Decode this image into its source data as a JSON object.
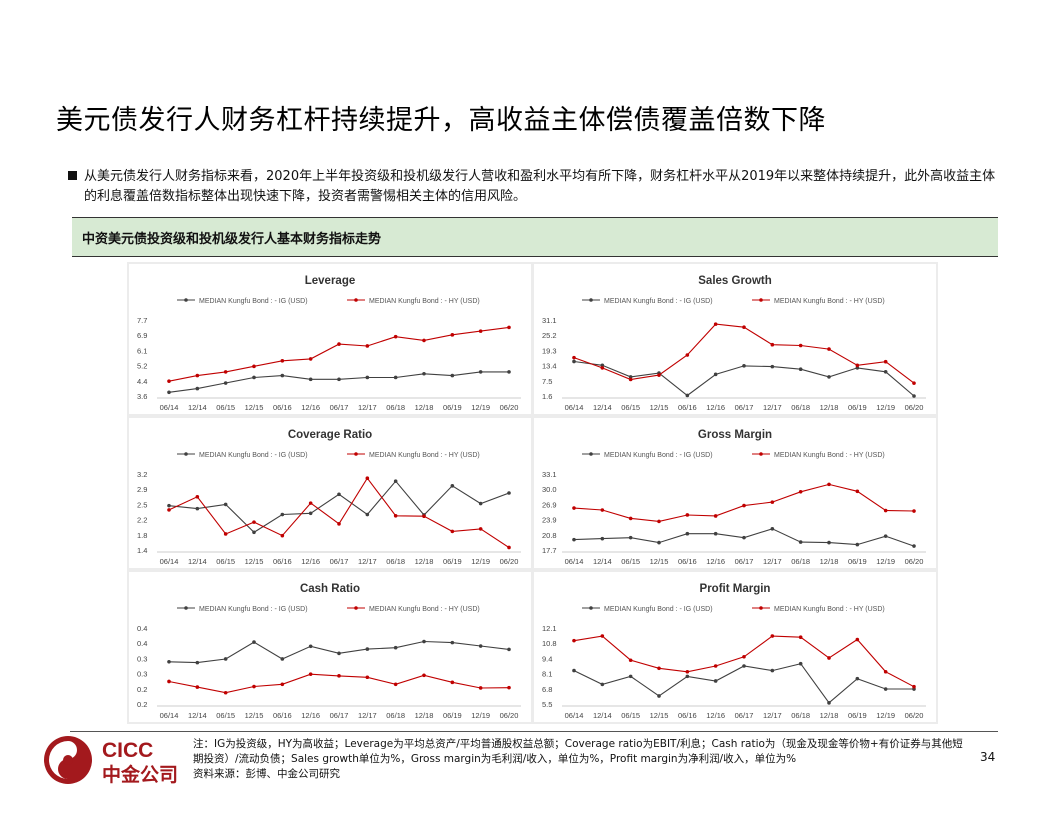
{
  "title": "美元债发行人财务杠杆持续提升，高收益主体偿债覆盖倍数下降",
  "bullet": "从美元债发行人财务指标来看，2020年上半年投资级和投机级发行人营收和盈利水平均有所下降，财务杠杆水平从2019年以来整体持续提升，此外高收益主体的利息覆盖倍数指标整体出现快速下降，投资者需警惕相关主体的信用风险。",
  "section_title": "中资美元债投资级和投机级发行人基本财务指标走势",
  "colors": {
    "ig": "#404040",
    "hy": "#c00000",
    "band": "#d7ead3",
    "brand": "#a3191d"
  },
  "chart_data": [
    {
      "type": "line",
      "title": "Leverage",
      "categories": [
        "06/14",
        "12/14",
        "06/15",
        "12/15",
        "06/16",
        "12/16",
        "06/17",
        "12/17",
        "06/18",
        "12/18",
        "06/19",
        "12/19",
        "06/20"
      ],
      "yticks": [
        "3.6",
        "4.4",
        "5.2",
        "6.1",
        "6.9",
        "7.7"
      ],
      "ylim": [
        3.6,
        7.7
      ],
      "series": [
        {
          "name": "MEDIAN Kungfu Bond : - IG (USD)",
          "values": [
            3.8,
            4.0,
            4.3,
            4.6,
            4.7,
            4.5,
            4.5,
            4.6,
            4.6,
            4.8,
            4.7,
            4.9,
            4.9
          ]
        },
        {
          "name": "MEDIAN Kungfu Bond : - HY (USD)",
          "values": [
            4.4,
            4.7,
            4.9,
            5.2,
            5.5,
            5.6,
            6.4,
            6.3,
            6.8,
            6.6,
            6.9,
            7.1,
            7.3
          ]
        }
      ]
    },
    {
      "type": "line",
      "title": "Sales Growth",
      "categories": [
        "06/14",
        "12/14",
        "06/15",
        "12/15",
        "06/16",
        "12/16",
        "06/17",
        "12/17",
        "06/18",
        "12/18",
        "06/19",
        "12/19",
        "06/20"
      ],
      "yticks": [
        "1.6",
        "7.5",
        "13.4",
        "19.3",
        "25.2",
        "31.1"
      ],
      "ylim": [
        1.6,
        31.1
      ],
      "series": [
        {
          "name": "MEDIAN Kungfu Bond : - IG (USD)",
          "values": [
            15.0,
            13.5,
            9.0,
            10.5,
            1.8,
            10.0,
            13.3,
            13.0,
            12.0,
            9.0,
            12.5,
            11.0,
            1.6
          ]
        },
        {
          "name": "MEDIAN Kungfu Bond : - HY (USD)",
          "values": [
            16.5,
            12.5,
            8.0,
            9.7,
            17.5,
            29.5,
            28.3,
            21.5,
            21.2,
            19.8,
            13.5,
            14.9,
            6.6
          ]
        }
      ]
    },
    {
      "type": "line",
      "title": "Coverage Ratio",
      "categories": [
        "06/14",
        "12/14",
        "06/15",
        "12/15",
        "06/16",
        "12/16",
        "06/17",
        "12/17",
        "06/18",
        "12/18",
        "06/19",
        "12/19",
        "06/20"
      ],
      "yticks": [
        "1.4",
        "1.8",
        "2.2",
        "2.5",
        "2.9",
        "3.2"
      ],
      "ylim": [
        1.4,
        3.2
      ],
      "series": [
        {
          "name": "MEDIAN Kungfu Bond : - IG (USD)",
          "values": [
            2.45,
            2.38,
            2.48,
            1.82,
            2.24,
            2.27,
            2.72,
            2.24,
            3.03,
            2.23,
            2.92,
            2.5,
            2.75
          ]
        },
        {
          "name": "MEDIAN Kungfu Bond : - HY (USD)",
          "values": [
            2.35,
            2.66,
            1.78,
            2.06,
            1.74,
            2.51,
            2.02,
            3.1,
            2.21,
            2.2,
            1.84,
            1.9,
            1.46
          ]
        }
      ]
    },
    {
      "type": "line",
      "title": "Gross Margin",
      "categories": [
        "06/14",
        "12/14",
        "06/15",
        "12/15",
        "06/16",
        "12/16",
        "06/17",
        "12/17",
        "06/18",
        "12/18",
        "06/19",
        "12/19",
        "06/20"
      ],
      "yticks": [
        "17.7",
        "20.8",
        "23.9",
        "26.9",
        "30.0",
        "33.1"
      ],
      "ylim": [
        17.7,
        33.1
      ],
      "series": [
        {
          "name": "MEDIAN Kungfu Bond : - IG (USD)",
          "values": [
            19.8,
            20.0,
            20.2,
            19.2,
            21.0,
            21.0,
            20.2,
            22.0,
            19.3,
            19.2,
            18.8,
            20.5,
            18.5
          ]
        },
        {
          "name": "MEDIAN Kungfu Bond : - HY (USD)",
          "values": [
            26.2,
            25.8,
            24.1,
            23.5,
            24.8,
            24.6,
            26.7,
            27.4,
            29.5,
            31.0,
            29.6,
            25.7,
            25.6
          ]
        }
      ]
    },
    {
      "type": "line",
      "title": "Cash Ratio",
      "categories": [
        "06/14",
        "12/14",
        "06/15",
        "12/15",
        "06/16",
        "12/16",
        "06/17",
        "12/17",
        "06/18",
        "12/18",
        "06/19",
        "12/19",
        "06/20"
      ],
      "yticks": [
        "0.2",
        "0.2",
        "0.3",
        "0.3",
        "0.4",
        "0.4"
      ],
      "ylim": [
        0.15,
        0.42
      ],
      "series": [
        {
          "name": "MEDIAN Kungfu Bond : - IG (USD)",
          "values": [
            0.3,
            0.297,
            0.31,
            0.37,
            0.31,
            0.355,
            0.33,
            0.345,
            0.35,
            0.372,
            0.368,
            0.356,
            0.344
          ]
        },
        {
          "name": "MEDIAN Kungfu Bond : - HY (USD)",
          "values": [
            0.23,
            0.21,
            0.19,
            0.212,
            0.22,
            0.256,
            0.25,
            0.245,
            0.22,
            0.252,
            0.227,
            0.207,
            0.208
          ]
        }
      ]
    },
    {
      "type": "line",
      "title": "Profit Margin",
      "categories": [
        "06/14",
        "12/14",
        "06/15",
        "12/15",
        "06/16",
        "12/16",
        "06/17",
        "12/17",
        "06/18",
        "12/18",
        "06/19",
        "12/19",
        "06/20"
      ],
      "yticks": [
        "5.5",
        "6.8",
        "8.1",
        "9.4",
        "10.8",
        "12.1"
      ],
      "ylim": [
        5.5,
        12.1
      ],
      "series": [
        {
          "name": "MEDIAN Kungfu Bond : - IG (USD)",
          "values": [
            8.4,
            7.2,
            7.9,
            6.2,
            7.9,
            7.5,
            8.8,
            8.4,
            9.0,
            5.6,
            7.7,
            6.8,
            6.8
          ]
        },
        {
          "name": "MEDIAN Kungfu Bond : - HY (USD)",
          "values": [
            11.0,
            11.4,
            9.3,
            8.6,
            8.3,
            8.8,
            9.6,
            11.4,
            11.3,
            9.5,
            11.1,
            8.3,
            7.0
          ]
        }
      ]
    }
  ],
  "footnote": {
    "line1": "注：IG为投资级，HY为高收益；Leverage为平均总资产/平均普通股权益总额；Coverage ratio为EBIT/利息；Cash ratio为（现金及现金等价物+有价证券与其他短期投资）/流动负债；Sales growth单位为%，Gross margin为毛利润/收入，单位为%，Profit margin为净利润/收入，单位为%",
    "line2": "资料来源：彭博、中金公司研究"
  },
  "logo": {
    "en": "CICC",
    "cn": "中金公司"
  },
  "page_number": "34"
}
